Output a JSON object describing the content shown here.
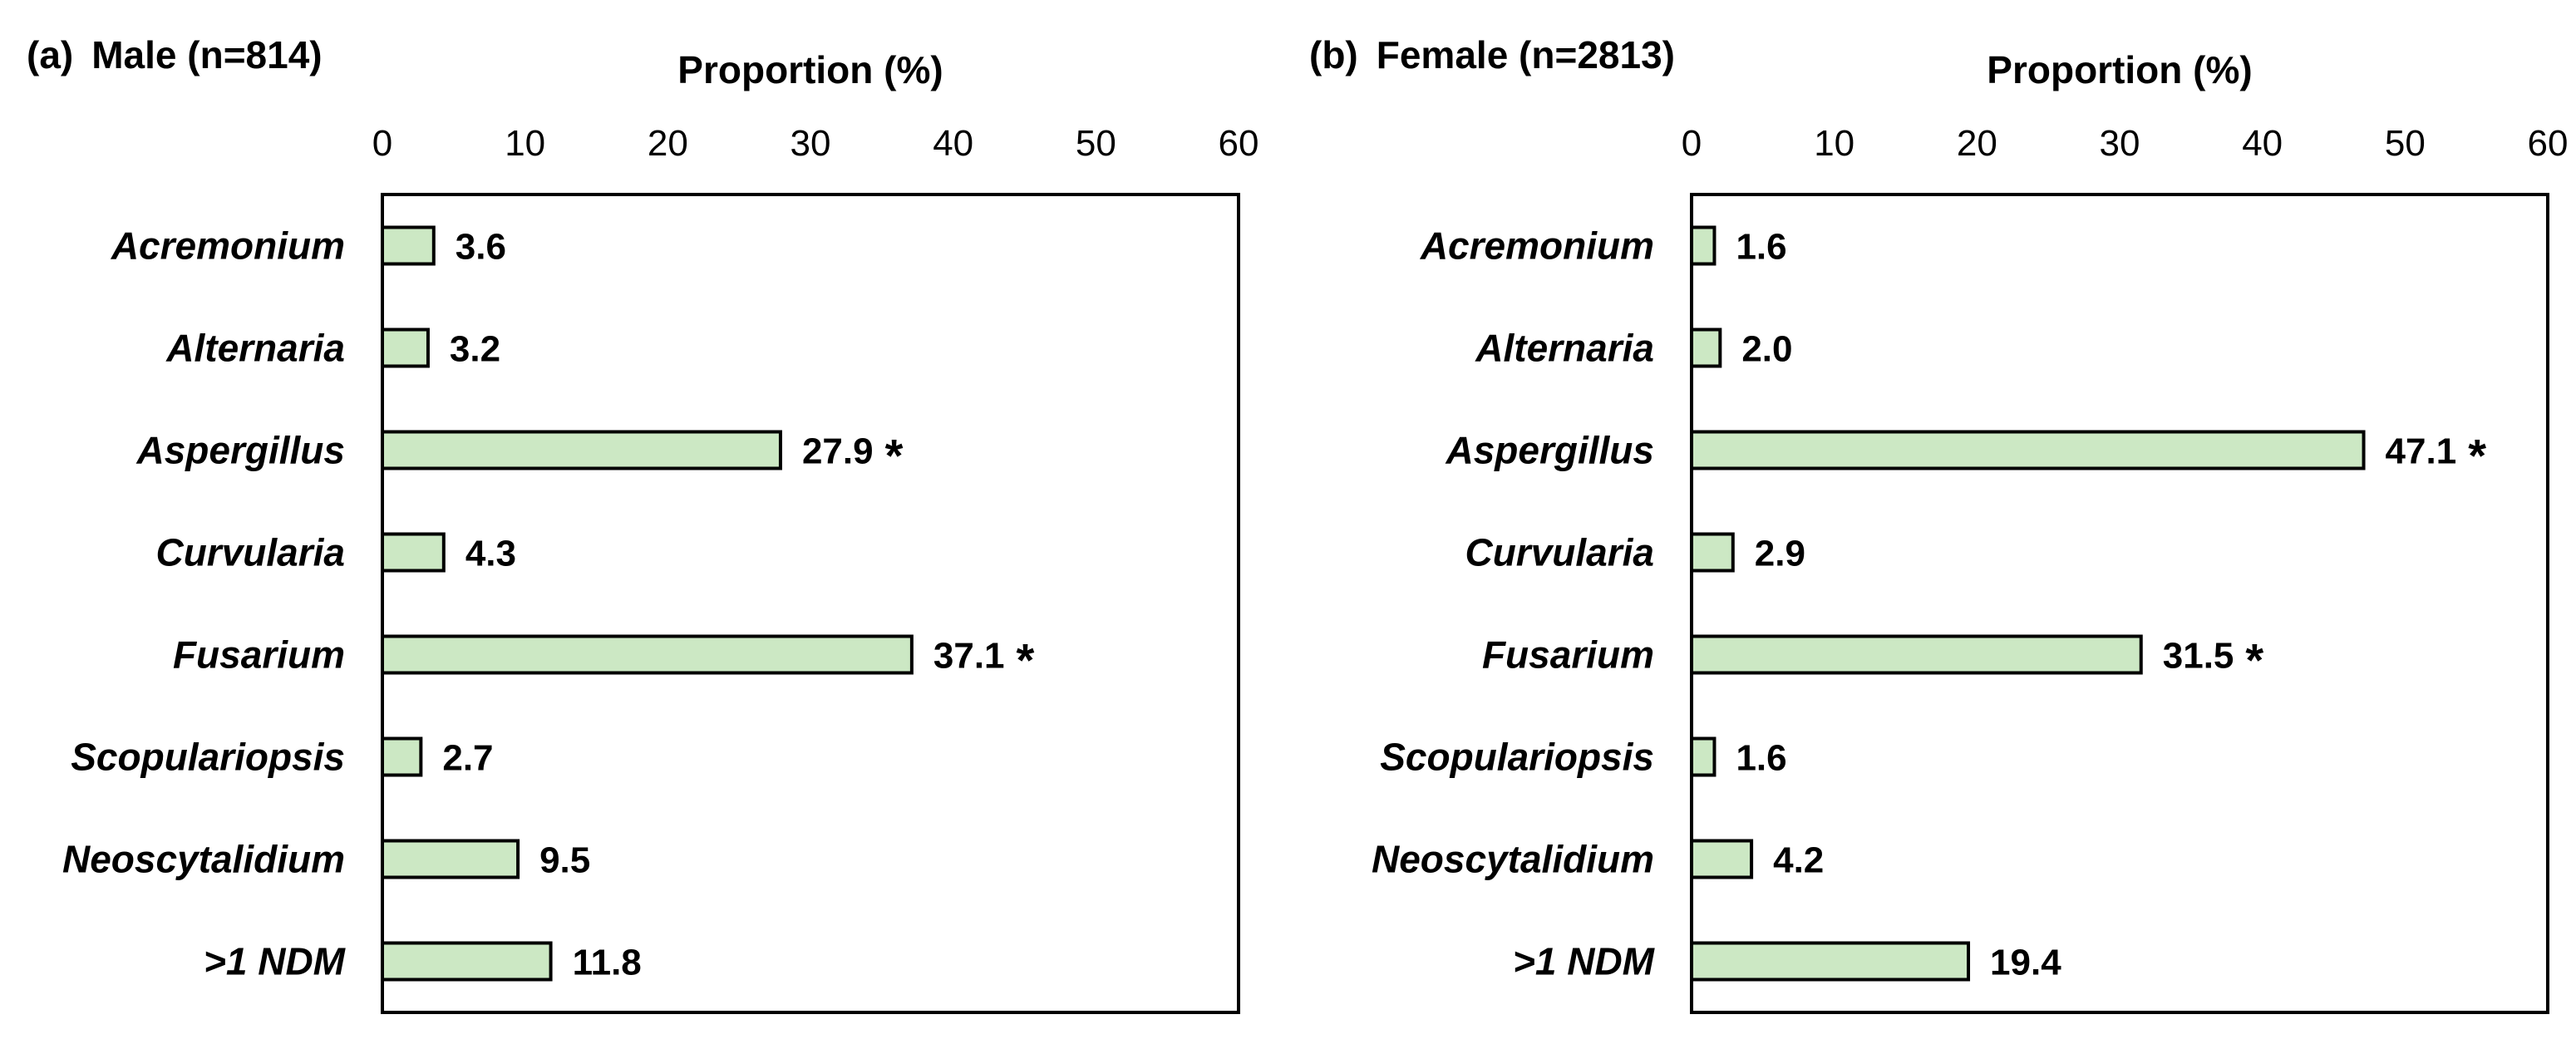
{
  "colors": {
    "bar_fill": "#cce8c4",
    "bar_stroke": "#000000",
    "significance_marker": "#7030a0"
  },
  "chart_data": [
    {
      "type": "bar",
      "orientation": "horizontal",
      "panel_label": "(a)",
      "title": "Male (n=814)",
      "xlabel": "Proportion (%)",
      "ylabel": "",
      "xlim": [
        0,
        60
      ],
      "xticks": [
        "0",
        "10",
        "20",
        "30",
        "40",
        "50",
        "60"
      ],
      "xaxis_position": "top",
      "grid": false,
      "categories": [
        "Acremonium",
        "Alternaria",
        "Aspergillus",
        "Curvularia",
        "Fusarium",
        "Scopulariopsis",
        "Neoscytalidium",
        ">1 NDM"
      ],
      "values": [
        3.6,
        3.2,
        27.9,
        4.3,
        37.1,
        2.7,
        9.5,
        11.8
      ],
      "data_labels": [
        "3.6",
        "3.2",
        "27.9",
        "4.3",
        "37.1",
        "2.7",
        "9.5",
        "11.8"
      ],
      "significant": [
        false,
        false,
        true,
        false,
        true,
        false,
        false,
        false
      ],
      "significance_symbol": "*"
    },
    {
      "type": "bar",
      "orientation": "horizontal",
      "panel_label": "(b)",
      "title": "Female (n=2813)",
      "xlabel": "Proportion (%)",
      "ylabel": "",
      "xlim": [
        0,
        60
      ],
      "xticks": [
        "0",
        "10",
        "20",
        "30",
        "40",
        "50",
        "60"
      ],
      "xaxis_position": "top",
      "grid": false,
      "categories": [
        "Acremonium",
        "Alternaria",
        "Aspergillus",
        "Curvularia",
        "Fusarium",
        "Scopulariopsis",
        "Neoscytalidium",
        ">1 NDM"
      ],
      "values": [
        1.6,
        2.0,
        47.1,
        2.9,
        31.5,
        1.6,
        4.2,
        19.4
      ],
      "data_labels": [
        "1.6",
        "2.0",
        "47.1",
        "2.9",
        "31.5",
        "1.6",
        "4.2",
        "19.4"
      ],
      "significant": [
        false,
        false,
        true,
        false,
        true,
        false,
        false,
        false
      ],
      "significance_symbol": "*"
    }
  ]
}
